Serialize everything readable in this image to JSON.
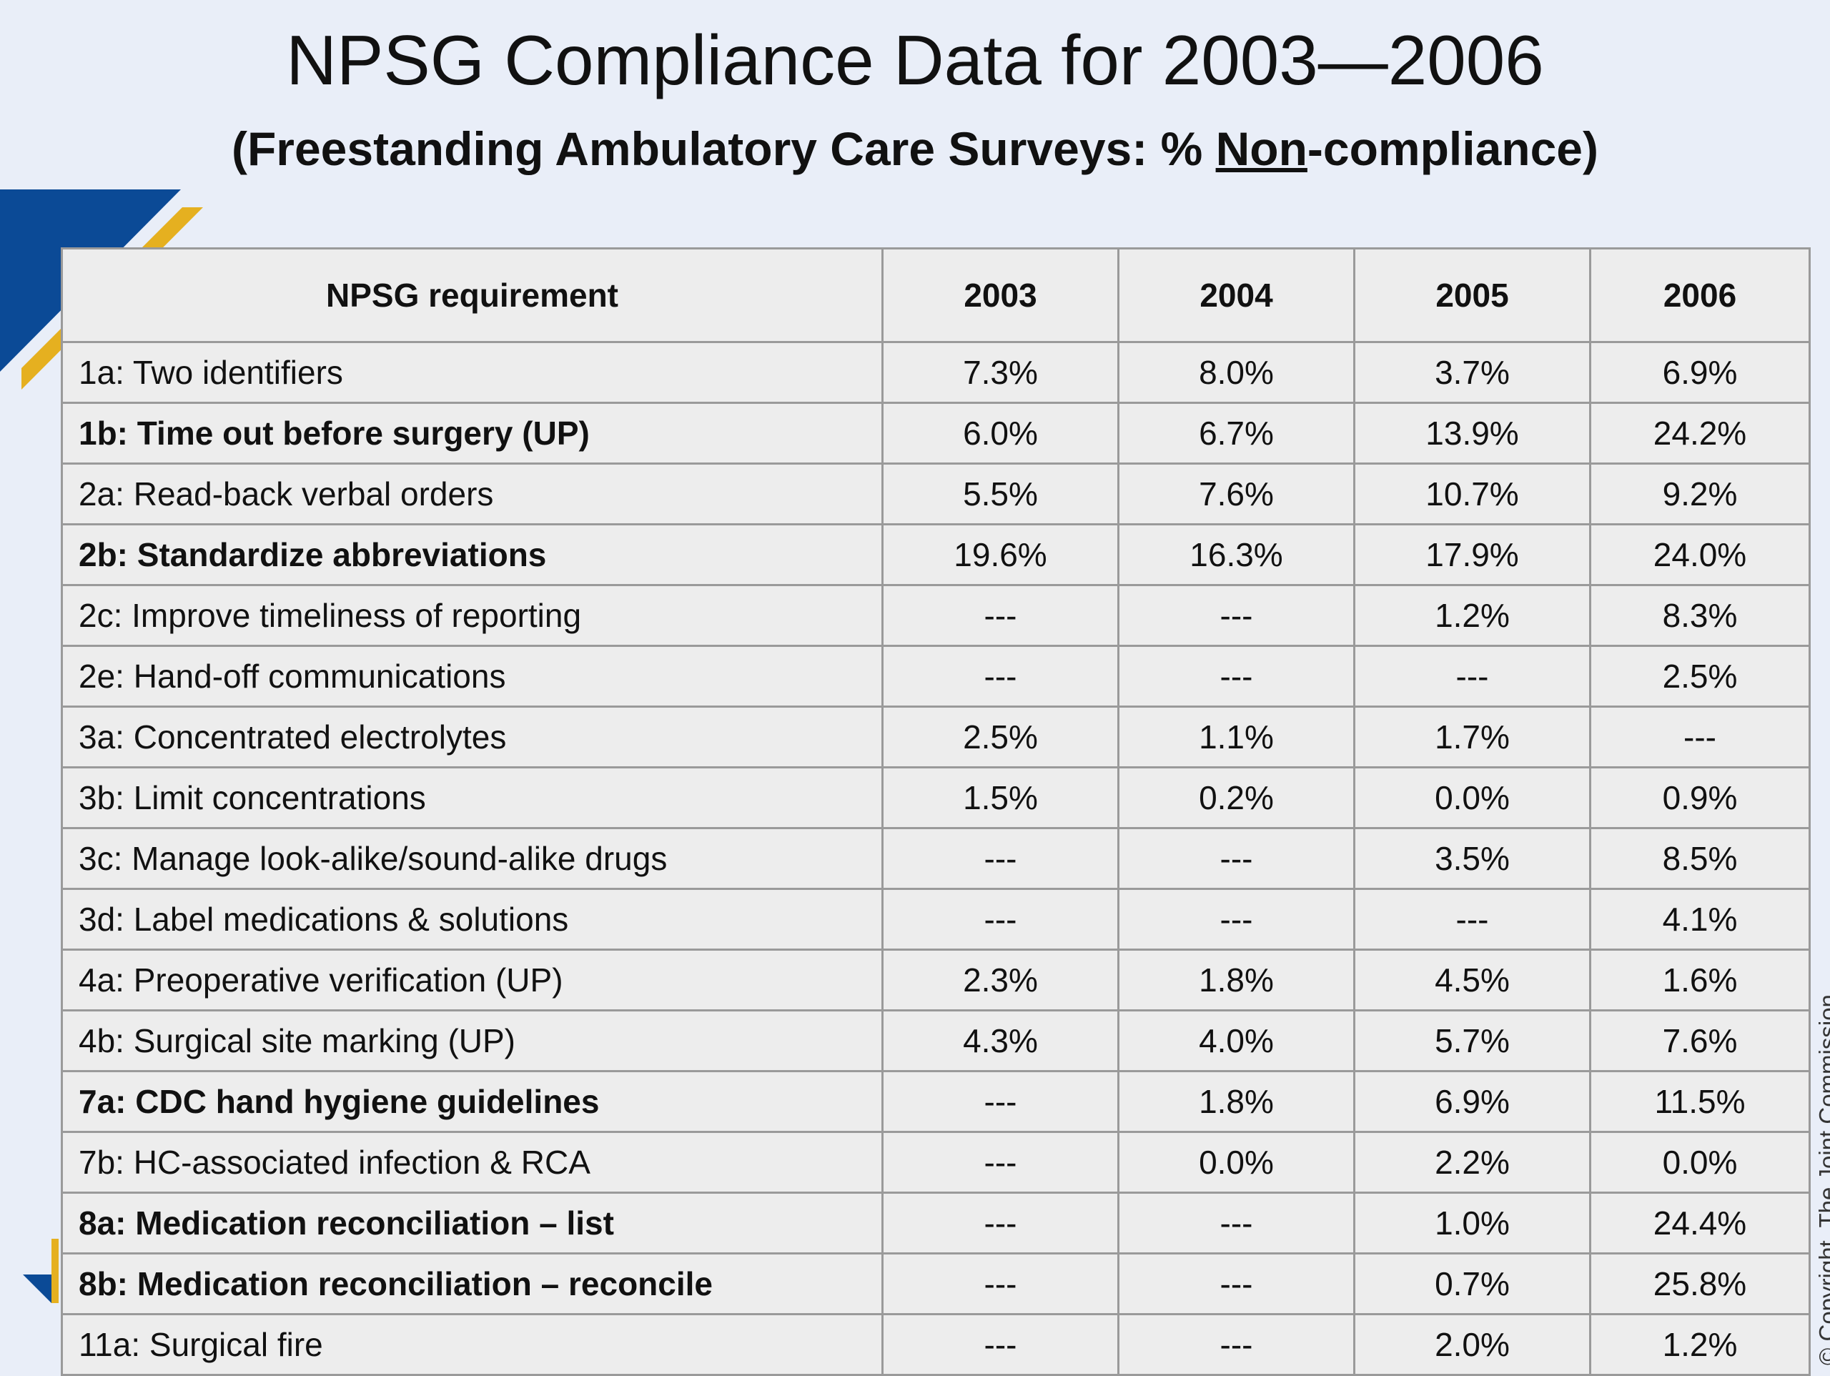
{
  "title": "NPSG Compliance Data for 2003—2006",
  "subtitle": {
    "before": "(Freestanding Ambulatory Care Surveys: % ",
    "underlined": "Non",
    "after": "-compliance)"
  },
  "copyright": "© Copyright, The Joint Commission",
  "table": {
    "header": [
      "NPSG requirement",
      "2003",
      "2004",
      "2005",
      "2006"
    ],
    "rows": [
      {
        "bold": false,
        "cells": [
          "1a: Two identifiers",
          "7.3%",
          "8.0%",
          "3.7%",
          "6.9%"
        ]
      },
      {
        "bold": true,
        "cells": [
          "1b: Time out before surgery (UP)",
          "6.0%",
          "6.7%",
          "13.9%",
          "24.2%"
        ]
      },
      {
        "bold": false,
        "cells": [
          "2a: Read-back verbal orders",
          "5.5%",
          "7.6%",
          "10.7%",
          "9.2%"
        ]
      },
      {
        "bold": true,
        "cells": [
          "2b: Standardize abbreviations",
          "19.6%",
          "16.3%",
          "17.9%",
          "24.0%"
        ]
      },
      {
        "bold": false,
        "cells": [
          "2c: Improve timeliness of reporting",
          "---",
          "---",
          "1.2%",
          "8.3%"
        ]
      },
      {
        "bold": false,
        "cells": [
          "2e: Hand-off communications",
          "---",
          "---",
          "---",
          "2.5%"
        ]
      },
      {
        "bold": false,
        "cells": [
          "3a: Concentrated electrolytes",
          "2.5%",
          "1.1%",
          "1.7%",
          "---"
        ]
      },
      {
        "bold": false,
        "cells": [
          "3b: Limit concentrations",
          "1.5%",
          "0.2%",
          "0.0%",
          "0.9%"
        ]
      },
      {
        "bold": false,
        "cells": [
          "3c: Manage look-alike/sound-alike drugs",
          "---",
          "---",
          "3.5%",
          "8.5%"
        ]
      },
      {
        "bold": false,
        "cells": [
          "3d: Label medications & solutions",
          "---",
          "---",
          "---",
          "4.1%"
        ]
      },
      {
        "bold": false,
        "cells": [
          "4a: Preoperative verification (UP)",
          "2.3%",
          "1.8%",
          "4.5%",
          "1.6%"
        ]
      },
      {
        "bold": false,
        "cells": [
          "4b: Surgical site marking (UP)",
          "4.3%",
          "4.0%",
          "5.7%",
          "7.6%"
        ]
      },
      {
        "bold": true,
        "cells": [
          "7a: CDC hand hygiene guidelines",
          "---",
          "1.8%",
          "6.9%",
          "11.5%"
        ]
      },
      {
        "bold": false,
        "cells": [
          "7b: HC-associated infection & RCA",
          "---",
          "0.0%",
          "2.2%",
          "0.0%"
        ]
      },
      {
        "bold": true,
        "cells": [
          "8a: Medication reconciliation – list",
          "---",
          "---",
          "1.0%",
          "24.4%"
        ]
      },
      {
        "bold": true,
        "cells": [
          "8b: Medication reconciliation – reconcile",
          "---",
          "---",
          "0.7%",
          "25.8%"
        ]
      },
      {
        "bold": false,
        "cells": [
          "11a: Surgical fire",
          "---",
          "---",
          "2.0%",
          "1.2%"
        ]
      }
    ]
  }
}
